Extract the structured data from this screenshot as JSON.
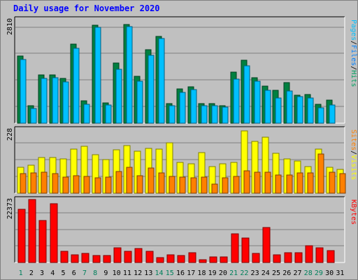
{
  "title": "Daily usage for November 2020",
  "chart_data": [
    {
      "type": "bar",
      "panel": "pages-files-hits",
      "max_label": "2810",
      "ylim": [
        0,
        2810
      ],
      "categories": [
        "1",
        "2",
        "3",
        "4",
        "5",
        "6",
        "7",
        "8",
        "9",
        "10",
        "11",
        "12",
        "13",
        "14",
        "15",
        "16",
        "17",
        "18",
        "19",
        "20",
        "21",
        "22",
        "23",
        "24",
        "25",
        "26",
        "27",
        "28",
        "29",
        "30",
        "31"
      ],
      "series": [
        {
          "name": "Hits",
          "color": "#008040",
          "values": [
            1830,
            480,
            1310,
            1310,
            1210,
            2150,
            600,
            2650,
            560,
            1630,
            2670,
            1270,
            1990,
            2360,
            540,
            930,
            980,
            540,
            540,
            480,
            1390,
            1700,
            1230,
            1000,
            900,
            1110,
            750,
            770,
            510,
            620,
            0
          ]
        },
        {
          "name": "Files",
          "color": "#00c0ff",
          "values": [
            1730,
            390,
            1210,
            1240,
            1120,
            2040,
            520,
            2610,
            500,
            1460,
            2620,
            1140,
            1850,
            2290,
            470,
            830,
            920,
            470,
            470,
            430,
            1200,
            1560,
            1130,
            890,
            690,
            880,
            720,
            690,
            410,
            500,
            0
          ]
        },
        {
          "name": "Pages",
          "color": "#00ffff",
          "values": [
            0,
            0,
            0,
            0,
            0,
            0,
            0,
            0,
            0,
            0,
            0,
            0,
            0,
            0,
            0,
            0,
            0,
            0,
            0,
            0,
            0,
            0,
            0,
            0,
            0,
            0,
            0,
            0,
            0,
            0,
            0
          ]
        }
      ],
      "y_axis_labels": [
        "Pages",
        "Files",
        "Hits"
      ],
      "y_axis_colors": [
        "#00c0ff",
        "#0080ff",
        "#00a060"
      ]
    },
    {
      "type": "bar",
      "panel": "sites-visits",
      "max_label": "228",
      "ylim": [
        0,
        228
      ],
      "categories": [
        "1",
        "2",
        "3",
        "4",
        "5",
        "6",
        "7",
        "8",
        "9",
        "10",
        "11",
        "12",
        "13",
        "14",
        "15",
        "16",
        "17",
        "18",
        "19",
        "20",
        "21",
        "22",
        "23",
        "24",
        "25",
        "26",
        "27",
        "28",
        "29",
        "30",
        "31"
      ],
      "series": [
        {
          "name": "Visits",
          "color": "#ffff00",
          "values": [
            92,
            100,
            128,
            127,
            124,
            158,
            167,
            138,
            121,
            155,
            170,
            150,
            160,
            158,
            181,
            109,
            105,
            146,
            94,
            106,
            110,
            223,
            185,
            200,
            142,
            124,
            115,
            94,
            157,
            93,
            86
          ]
        },
        {
          "name": "Sites",
          "color": "#ff8000",
          "values": [
            70,
            72,
            75,
            70,
            58,
            62,
            61,
            56,
            57,
            77,
            92,
            62,
            90,
            72,
            60,
            58,
            55,
            58,
            32,
            56,
            59,
            79,
            76,
            75,
            66,
            64,
            73,
            72,
            140,
            75,
            70
          ]
        }
      ],
      "y_axis_labels": [
        "Sites",
        "Visits"
      ],
      "y_axis_colors": [
        "#ff8000",
        "#ffff00"
      ]
    },
    {
      "type": "bar",
      "panel": "kbytes",
      "max_label": "22373",
      "ylim": [
        0,
        22373
      ],
      "categories": [
        "1",
        "2",
        "3",
        "4",
        "5",
        "6",
        "7",
        "8",
        "9",
        "10",
        "11",
        "12",
        "13",
        "14",
        "15",
        "16",
        "17",
        "18",
        "19",
        "20",
        "21",
        "22",
        "23",
        "24",
        "25",
        "26",
        "27",
        "28",
        "29",
        "30",
        "31"
      ],
      "series": [
        {
          "name": "KBytes",
          "color": "#ff0000",
          "values": [
            18900,
            22400,
            14800,
            20800,
            4100,
            2700,
            3200,
            2500,
            2600,
            5200,
            4000,
            4900,
            4000,
            1800,
            2800,
            2600,
            3500,
            1000,
            2100,
            2100,
            10300,
            8800,
            3200,
            12400,
            2700,
            3500,
            3500,
            6000,
            5300,
            4300,
            0
          ]
        }
      ],
      "y_axis_labels": [
        "KBytes"
      ],
      "y_axis_colors": [
        "#ff0000"
      ]
    }
  ],
  "x_axis": {
    "day_labels": [
      "1",
      "2",
      "3",
      "4",
      "5",
      "6",
      "7",
      "8",
      "9",
      "10",
      "11",
      "12",
      "13",
      "14",
      "15",
      "16",
      "17",
      "18",
      "19",
      "20",
      "21",
      "22",
      "23",
      "24",
      "25",
      "26",
      "27",
      "28",
      "29",
      "30",
      "31"
    ],
    "weekend_days": [
      "1",
      "7",
      "8",
      "14",
      "15",
      "21",
      "22",
      "28",
      "29"
    ],
    "weekday_color": "#000000",
    "weekend_color": "#00805c"
  }
}
